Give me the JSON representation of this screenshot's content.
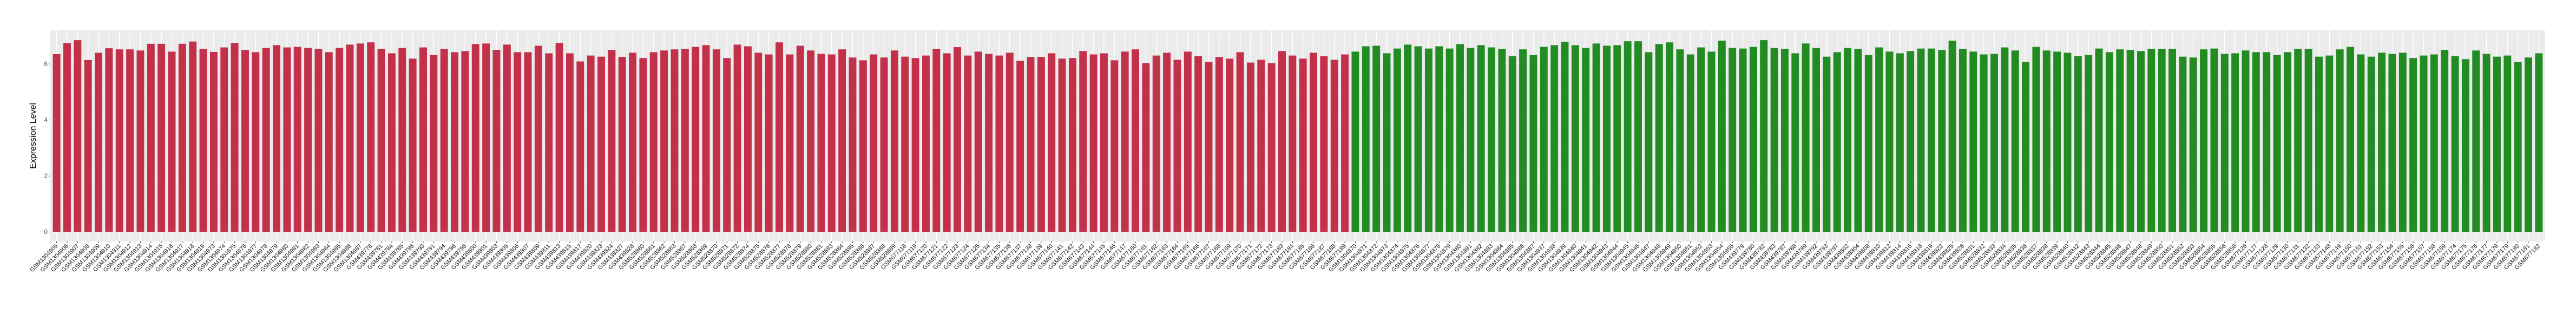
{
  "chart_data": {
    "type": "bar",
    "title": "",
    "xlabel": "",
    "ylabel": "Expression Level",
    "ylim": [
      -0.335,
      7.2
    ],
    "yticks": [
      0,
      2,
      4,
      6
    ],
    "grid": true,
    "legend": "none",
    "background": "#EBEBEB",
    "series": [
      {
        "color": "#C3304A",
        "categories": [
          "GSM1304905",
          "GSM1304906",
          "GSM1304907",
          "GSM1304908",
          "GSM1304909",
          "GSM1304910",
          "GSM1304911",
          "GSM1304912",
          "GSM1304913",
          "GSM1304914",
          "GSM1304915",
          "GSM1304916",
          "GSM1304917",
          "GSM1304918",
          "GSM1304919",
          "GSM1304973",
          "GSM1304974",
          "GSM1304975",
          "GSM1304976",
          "GSM1304977",
          "GSM1304978",
          "GSM1304979",
          "GSM1304980",
          "GSM1304981",
          "GSM1304982",
          "GSM1304983",
          "GSM1304984",
          "GSM1304985",
          "GSM1304986",
          "GSM1304987",
          "GSM439778",
          "GSM439781",
          "GSM439784",
          "GSM439785",
          "GSM439786",
          "GSM439790",
          "GSM439791",
          "GSM439794",
          "GSM439796",
          "GSM439798",
          "GSM439800",
          "GSM439801",
          "GSM439803",
          "GSM439805",
          "GSM439806",
          "GSM439807",
          "GSM439809",
          "GSM439811",
          "GSM439813",
          "GSM439815",
          "GSM439817",
          "GSM439820",
          "GSM439823",
          "GSM439824",
          "GSM439827",
          "GSM439828",
          "GSM528860",
          "GSM528861",
          "GSM528862",
          "GSM528863",
          "GSM528867",
          "GSM528868",
          "GSM528869",
          "GSM528870",
          "GSM528871",
          "GSM528872",
          "GSM528874",
          "GSM528875",
          "GSM528876",
          "GSM528877",
          "GSM528878",
          "GSM528879",
          "GSM528880",
          "GSM528881",
          "GSM528883",
          "GSM528884",
          "GSM528885",
          "GSM528886",
          "GSM528887",
          "GSM528888",
          "GSM528889",
          "GSM677118",
          "GSM677119",
          "GSM677120",
          "GSM677121",
          "GSM677122",
          "GSM677123",
          "GSM677124",
          "GSM677125",
          "GSM677134",
          "GSM677135",
          "GSM677136",
          "GSM677137",
          "GSM677138",
          "GSM677139",
          "GSM677140",
          "GSM677141",
          "GSM677142",
          "GSM677143",
          "GSM677144",
          "GSM677145",
          "GSM677146",
          "GSM677147",
          "GSM677160",
          "GSM677161",
          "GSM677162",
          "GSM677163",
          "GSM677164",
          "GSM677165",
          "GSM677166",
          "GSM677167",
          "GSM677168",
          "GSM677169",
          "GSM677170",
          "GSM677171",
          "GSM677172",
          "GSM677173",
          "GSM677183",
          "GSM677184",
          "GSM677185",
          "GSM677186",
          "GSM677187",
          "GSM677188",
          "GSM677189"
        ],
        "values": [
          6.35,
          6.74,
          6.85,
          6.14,
          6.4,
          6.56,
          6.52,
          6.52,
          6.48,
          6.72,
          6.72,
          6.44,
          6.72,
          6.8,
          6.54,
          6.43,
          6.59,
          6.75,
          6.5,
          6.42,
          6.57,
          6.67,
          6.59,
          6.61,
          6.57,
          6.54,
          6.42,
          6.57,
          6.69,
          6.73,
          6.77,
          6.54,
          6.38,
          6.57,
          6.19,
          6.59,
          6.32,
          6.54,
          6.42,
          6.46,
          6.71,
          6.73,
          6.5,
          6.69,
          6.42,
          6.42,
          6.65,
          6.38,
          6.75,
          6.38,
          6.09,
          6.3,
          6.26,
          6.5,
          6.25,
          6.4,
          6.21,
          6.42,
          6.48,
          6.52,
          6.54,
          6.61,
          6.67,
          6.52,
          6.21,
          6.69,
          6.63,
          6.4,
          6.34,
          6.77,
          6.34,
          6.65,
          6.48,
          6.36,
          6.34,
          6.52,
          6.23,
          6.13,
          6.34,
          6.23,
          6.48,
          6.26,
          6.21,
          6.3,
          6.54,
          6.38,
          6.6,
          6.3,
          6.44,
          6.36,
          6.3,
          6.4,
          6.11,
          6.25,
          6.25,
          6.38,
          6.19,
          6.21,
          6.46,
          6.34,
          6.38,
          6.13,
          6.44,
          6.52,
          6.03,
          6.3,
          6.4,
          6.15,
          6.44,
          6.28,
          6.07,
          6.25,
          6.19,
          6.42,
          6.05,
          6.15,
          6.03,
          6.46,
          6.3,
          6.19,
          6.4,
          6.28,
          6.15,
          6.34
        ]
      },
      {
        "color": "#228B22",
        "categories": [
          "GSM1304870",
          "GSM1304871",
          "GSM1304872",
          "GSM1304873",
          "GSM1304874",
          "GSM1304875",
          "GSM1304876",
          "GSM1304877",
          "GSM1304878",
          "GSM1304879",
          "GSM1304880",
          "GSM1304881",
          "GSM1304882",
          "GSM1304883",
          "GSM1304884",
          "GSM1304885",
          "GSM1304886",
          "GSM1304887",
          "GSM1304937",
          "GSM1304938",
          "GSM1304939",
          "GSM1304940",
          "GSM1304941",
          "GSM1304942",
          "GSM1304943",
          "GSM1304944",
          "GSM1304945",
          "GSM1304946",
          "GSM1304947",
          "GSM1304948",
          "GSM1304949",
          "GSM1304950",
          "GSM1304951",
          "GSM1304952",
          "GSM1304953",
          "GSM1304954",
          "GSM1304955",
          "GSM439779",
          "GSM439780",
          "GSM439782",
          "GSM439783",
          "GSM439787",
          "GSM439788",
          "GSM439789",
          "GSM439792",
          "GSM439793",
          "GSM439797",
          "GSM439802",
          "GSM439804",
          "GSM439808",
          "GSM439810",
          "GSM439812",
          "GSM439814",
          "GSM439816",
          "GSM439818",
          "GSM439819",
          "GSM439822",
          "GSM439825",
          "GSM439826",
          "GSM528831",
          "GSM528832",
          "GSM528833",
          "GSM528834",
          "GSM528835",
          "GSM528836",
          "GSM528837",
          "GSM528838",
          "GSM528839",
          "GSM528840",
          "GSM528842",
          "GSM528843",
          "GSM528844",
          "GSM528845",
          "GSM528846",
          "GSM528847",
          "GSM528848",
          "GSM528849",
          "GSM528850",
          "GSM528851",
          "GSM528852",
          "GSM528853",
          "GSM528854",
          "GSM528855",
          "GSM528856",
          "GSM528858",
          "GSM677126",
          "GSM677127",
          "GSM677128",
          "GSM677129",
          "GSM677130",
          "GSM677131",
          "GSM677132",
          "GSM677133",
          "GSM677148",
          "GSM677149",
          "GSM677150",
          "GSM677151",
          "GSM677152",
          "GSM677153",
          "GSM677154",
          "GSM677155",
          "GSM677156",
          "GSM677157",
          "GSM677158",
          "GSM677159",
          "GSM677174",
          "GSM677175",
          "GSM677176",
          "GSM677177",
          "GSM677178",
          "GSM677179",
          "GSM677180",
          "GSM677181",
          "GSM677182"
        ],
        "values": [
          6.44,
          6.63,
          6.65,
          6.38,
          6.55,
          6.69,
          6.63,
          6.55,
          6.63,
          6.55,
          6.71,
          6.57,
          6.67,
          6.59,
          6.54,
          6.28,
          6.52,
          6.32,
          6.61,
          6.67,
          6.79,
          6.67,
          6.57,
          6.73,
          6.65,
          6.67,
          6.81,
          6.81,
          6.42,
          6.71,
          6.77,
          6.52,
          6.34,
          6.59,
          6.44,
          6.83,
          6.57,
          6.55,
          6.61,
          6.85,
          6.57,
          6.54,
          6.38,
          6.73,
          6.57,
          6.26,
          6.42,
          6.57,
          6.54,
          6.32,
          6.59,
          6.44,
          6.38,
          6.46,
          6.55,
          6.55,
          6.5,
          6.83,
          6.54,
          6.44,
          6.34,
          6.36,
          6.59,
          6.48,
          6.07,
          6.61,
          6.48,
          6.44,
          6.4,
          6.28,
          6.32,
          6.55,
          6.42,
          6.52,
          6.5,
          6.46,
          6.54,
          6.54,
          6.54,
          6.26,
          6.23,
          6.52,
          6.55,
          6.36,
          6.38,
          6.48,
          6.42,
          6.42,
          6.32,
          6.42,
          6.54,
          6.54,
          6.26,
          6.3,
          6.52,
          6.61,
          6.34,
          6.26,
          6.4,
          6.36,
          6.4,
          6.21,
          6.3,
          6.34,
          6.5,
          6.28,
          6.17,
          6.48,
          6.36,
          6.26,
          6.3,
          6.07,
          6.23,
          6.38
        ]
      }
    ]
  }
}
